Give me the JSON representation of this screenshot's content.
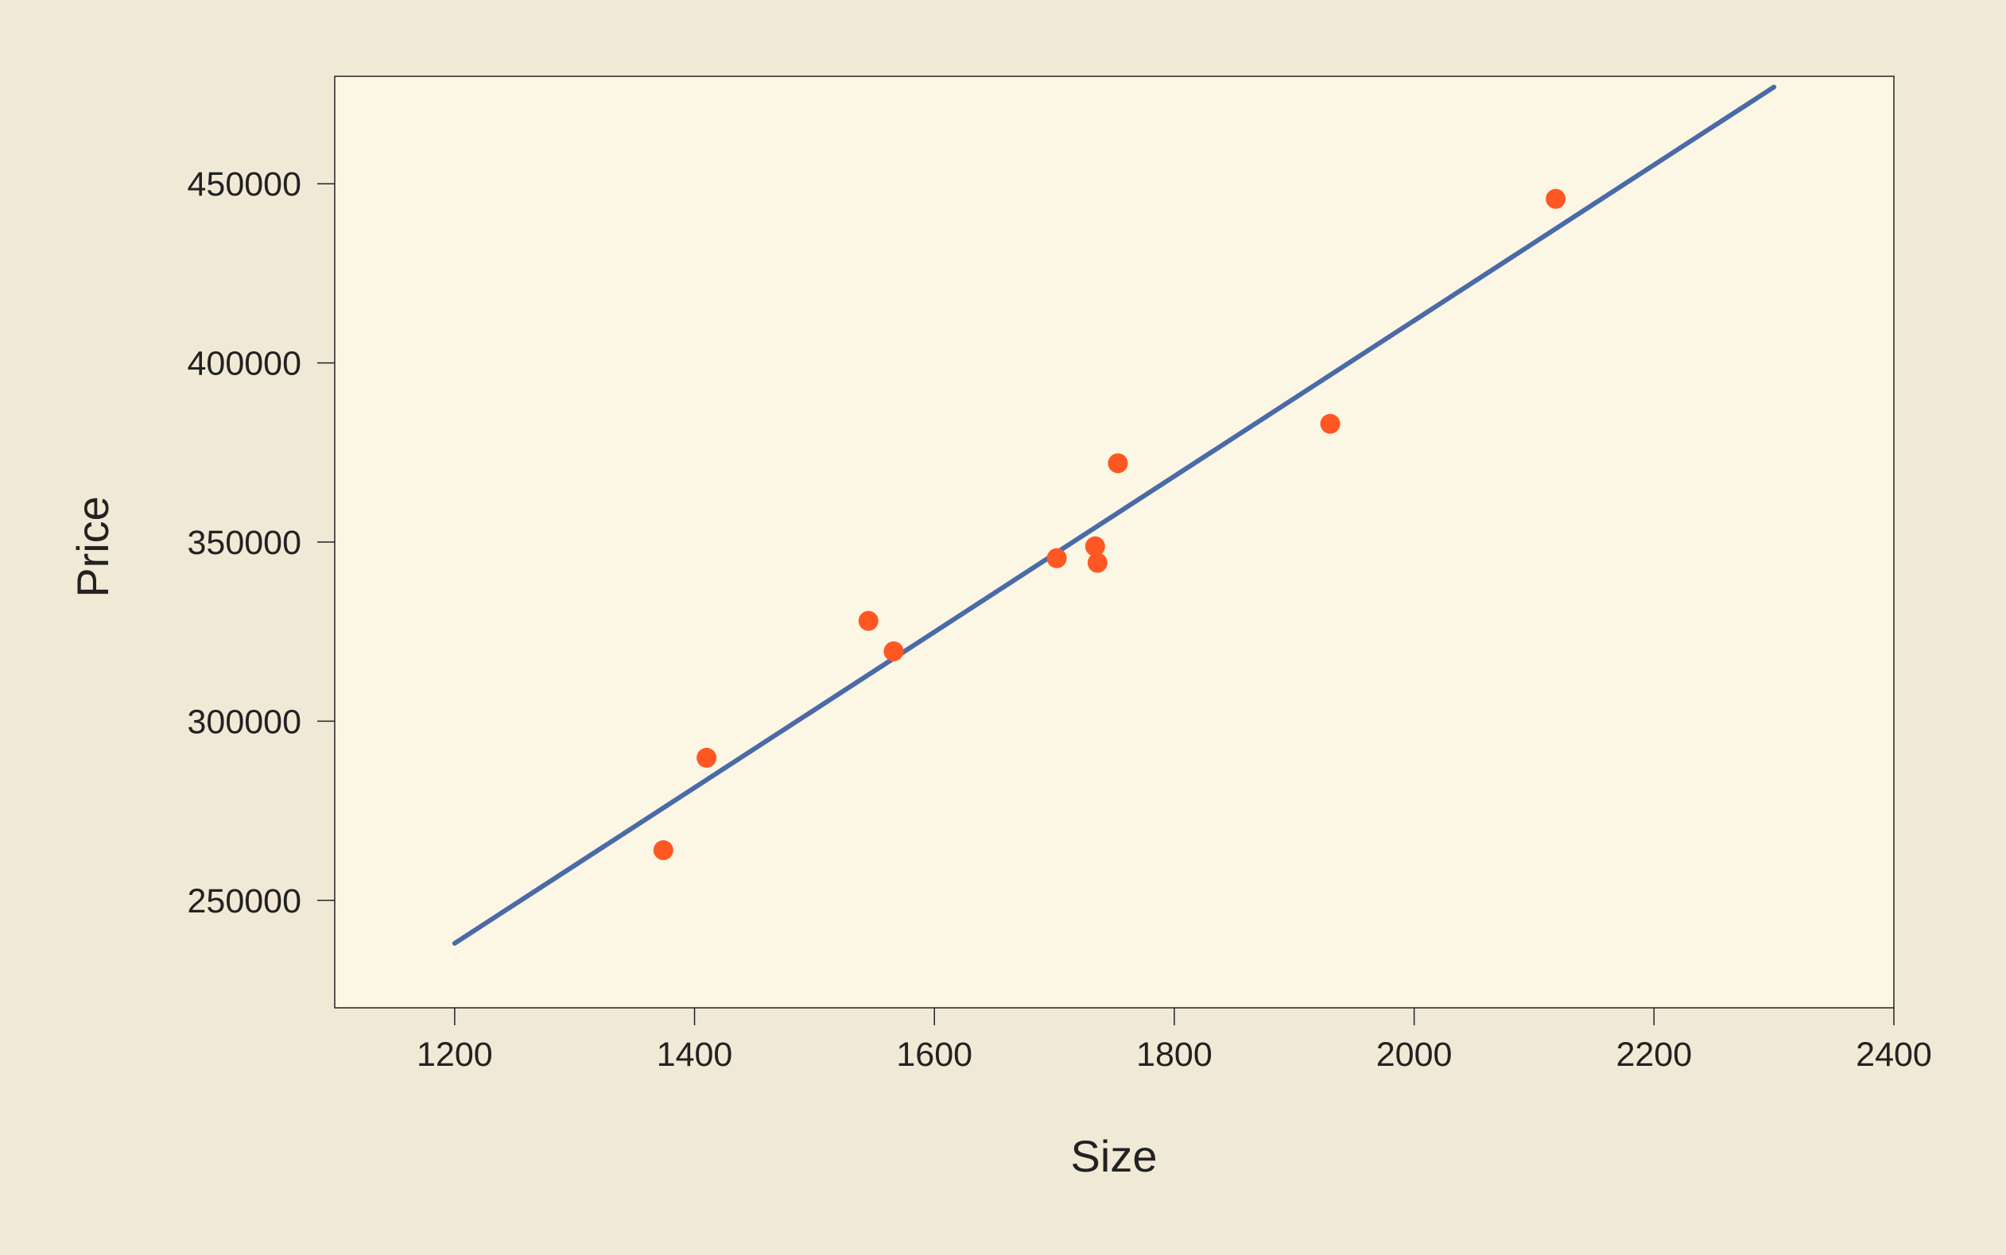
{
  "colors": {
    "page_background": "#f0e9d6",
    "plot_background": "#fcf6e4",
    "frame": "#222222",
    "points": "#ff5722",
    "fit_line": "#4a6aa8",
    "text": "#222222"
  },
  "chart_data": {
    "type": "scatter",
    "xlabel": "Size",
    "ylabel": "Price",
    "xlim": [
      1100,
      2400
    ],
    "ylim": [
      220000,
      480000
    ],
    "x_ticks": [
      1200,
      1400,
      1600,
      1800,
      2000,
      2200,
      2400
    ],
    "y_ticks": [
      250000,
      300000,
      350000,
      400000,
      450000
    ],
    "x_tick_labels": [
      "1200",
      "1400",
      "1600",
      "1800",
      "2000",
      "2200",
      "2400"
    ],
    "y_tick_labels": [
      "250000",
      "300000",
      "350000",
      "400000",
      "450000"
    ],
    "grid": false,
    "legend": "none",
    "points": [
      {
        "x": 1374,
        "y": 264000
      },
      {
        "x": 1410,
        "y": 289800
      },
      {
        "x": 1545,
        "y": 328000
      },
      {
        "x": 1566,
        "y": 319500
      },
      {
        "x": 1702,
        "y": 345500
      },
      {
        "x": 1734,
        "y": 348800
      },
      {
        "x": 1736,
        "y": 344200
      },
      {
        "x": 1753,
        "y": 372000
      },
      {
        "x": 1930,
        "y": 383000
      },
      {
        "x": 2118,
        "y": 445800
      }
    ],
    "fit_line": {
      "x": [
        1200,
        2300
      ],
      "y": [
        238000,
        477000
      ]
    }
  }
}
